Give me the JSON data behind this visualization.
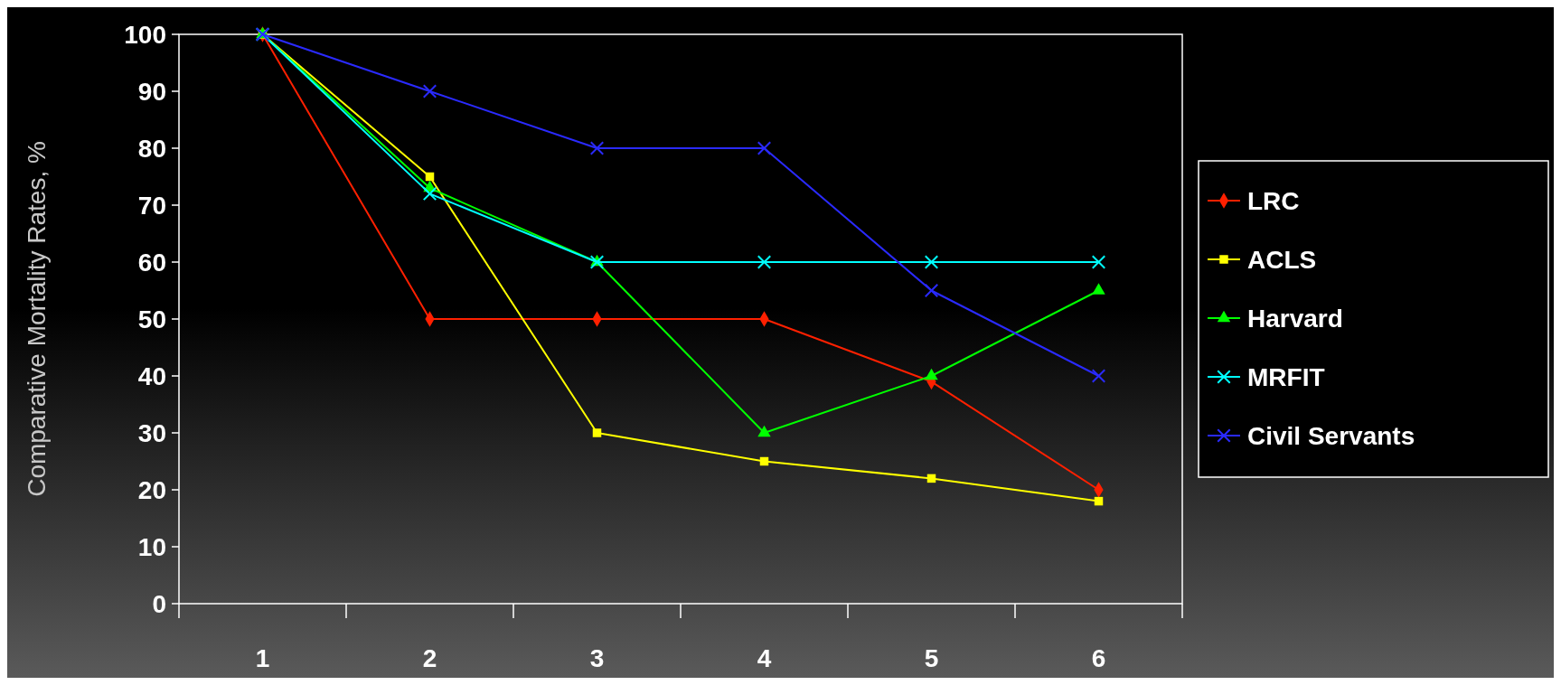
{
  "chart_data": {
    "type": "line",
    "ylabel": "Comparative Mortality Rates, %",
    "categories": [
      "1",
      "2",
      "3",
      "4",
      "5",
      "6"
    ],
    "ylim": [
      0,
      100
    ],
    "yticks": [
      0,
      10,
      20,
      30,
      40,
      50,
      60,
      70,
      80,
      90,
      100
    ],
    "grid": false,
    "legend": "right",
    "series": [
      {
        "name": "LRC",
        "color": "#ff2000",
        "marker": "diamond",
        "values": [
          100,
          50,
          50,
          50,
          39,
          20
        ]
      },
      {
        "name": "ACLS",
        "color": "#ffff00",
        "marker": "square",
        "values": [
          100,
          75,
          30,
          25,
          22,
          18
        ]
      },
      {
        "name": "Harvard",
        "color": "#00ff00",
        "marker": "triangle",
        "values": [
          100,
          73,
          60,
          30,
          40,
          55
        ]
      },
      {
        "name": "MRFIT",
        "color": "#00ffff",
        "marker": "cross",
        "values": [
          100,
          72,
          60,
          60,
          60,
          60
        ]
      },
      {
        "name": "Civil Servants",
        "color": "#2a2aff",
        "marker": "cross",
        "values": [
          100,
          90,
          80,
          80,
          55,
          40
        ]
      }
    ]
  }
}
